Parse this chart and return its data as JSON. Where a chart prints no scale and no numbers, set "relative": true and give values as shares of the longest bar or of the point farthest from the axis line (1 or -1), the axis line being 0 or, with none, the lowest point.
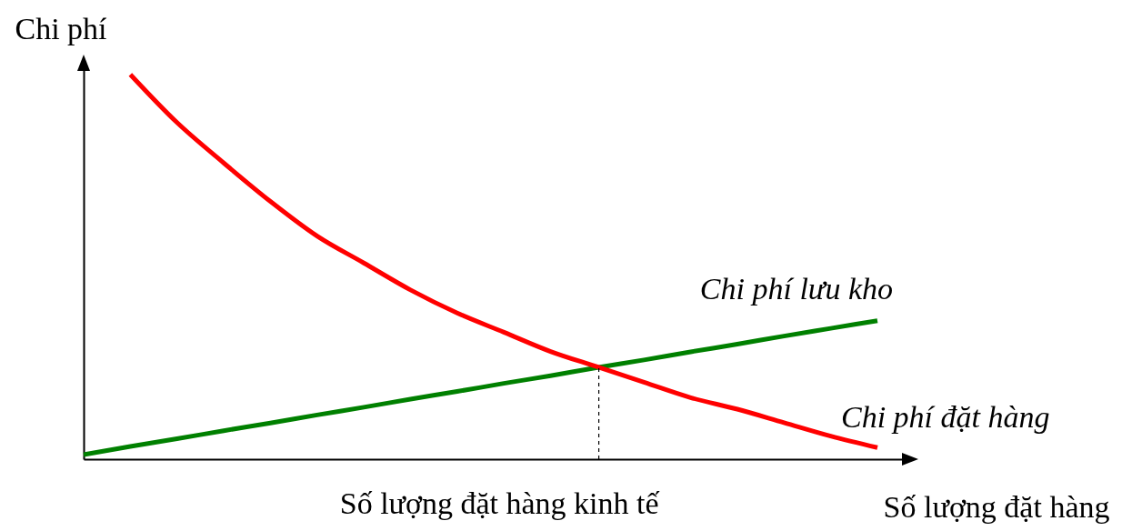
{
  "chart_data": {
    "type": "line",
    "relative": true,
    "ylabel": "Chi phí",
    "xlabel": "Số lượng đặt hàng",
    "categories": [
      null,
      null,
      null,
      null,
      null,
      null,
      null,
      null,
      null,
      null,
      null,
      null,
      null,
      null,
      null,
      null,
      null,
      null
    ],
    "series": [
      {
        "name": "Chi phí lưu kho",
        "color": "#008000",
        "values": [
          0.012,
          0.033,
          0.053,
          0.074,
          0.094,
          0.115,
          0.135,
          0.156,
          0.176,
          0.197,
          0.217,
          0.238,
          0.258,
          0.279,
          0.299,
          0.32,
          0.34,
          0.36
        ]
      },
      {
        "name": "Chi phí đặt hàng",
        "color": "#ff0000",
        "values": [
          null,
          1.0,
          0.875,
          0.77,
          0.67,
          0.58,
          0.51,
          0.44,
          0.38,
          0.33,
          0.28,
          0.24,
          0.2,
          0.16,
          0.13,
          0.095,
          0.06,
          0.03
        ]
      }
    ],
    "annotations": [
      "Số lượng đặt hàng kinh tế"
    ],
    "grid": false,
    "legend": false,
    "marker": "none",
    "line_style": "solid"
  }
}
